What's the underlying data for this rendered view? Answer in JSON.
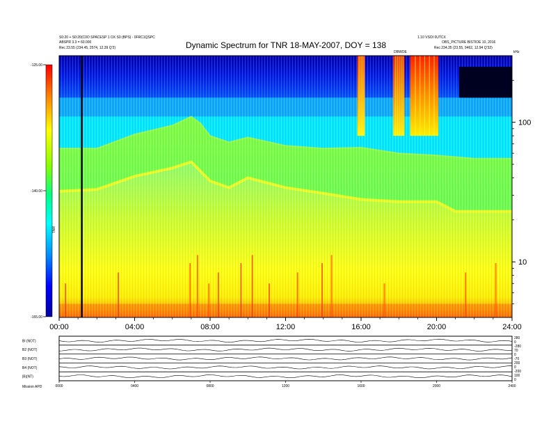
{
  "chart_data": {
    "type": "heatmap",
    "title": "Dynamic Spectrum for TNR 18-MAY-2007, DOY = 138",
    "header_left": [
      "S0:20 + S0:20(C0O SPACESP 1 OX S0 (BPS) - 0FRC1QSPC",
      "ABSPR 3.3 = 60.000",
      "Rec     23.55 (234.45, 2574, 12.39 Q'2)"
    ],
    "header_right": [
      "1.10 VSOI 0UTCX",
      "OBS_PICTURE BISTIOE 10, 2016",
      "Rec     234.35 (23.55, 9462, 12.94 Q'32)"
    ],
    "side_labels": {
      "legend": "DBWOE",
      "units": "kHz",
      "colorbar": "TNR"
    },
    "x_ticks": [
      "00:00",
      "04:00",
      "08:00",
      "12:00",
      "16:00",
      "20:00",
      "24:00"
    ],
    "x_range_hours": [
      0,
      24
    ],
    "y_scale": "log",
    "y_range_khz": [
      4,
      300
    ],
    "y_ticks": [
      "100",
      "10"
    ],
    "colorbar": {
      "range": [
        -155,
        -125
      ],
      "ticks": [
        "-125.00",
        "-140.00",
        "-155.00"
      ],
      "colors": [
        "#0000a0",
        "#0000ff",
        "#0088ff",
        "#00ffff",
        "#00ff88",
        "#88ff00",
        "#ffff00",
        "#ff8800",
        "#ff0000"
      ]
    },
    "bands": [
      {
        "range_khz": [
          150,
          300
        ],
        "level": "dark blue (about -125 to -130)"
      },
      {
        "range_khz": [
          60,
          150
        ],
        "level": "cyan (about -133)"
      },
      {
        "range_khz": [
          28,
          60
        ],
        "level": "green (about -140)"
      },
      {
        "range_khz": [
          7,
          28
        ],
        "level": "light green to yellow (about -145)"
      },
      {
        "range_khz": [
          4,
          7
        ],
        "level": "yellow to red (about -150 to -155)"
      }
    ],
    "green_band_top_khz": {
      "x_hours": [
        0,
        2,
        4,
        6,
        7,
        7.5,
        8,
        9,
        10,
        12,
        14,
        16,
        18,
        20,
        22,
        24
      ],
      "values": [
        65,
        65,
        82,
        95,
        110,
        98,
        80,
        72,
        78,
        68,
        65,
        66,
        60,
        58,
        55,
        55
      ]
    },
    "yellow_band_top_khz": {
      "x_hours": [
        0,
        2,
        4,
        6,
        7,
        8,
        9,
        10,
        12,
        14,
        16,
        18,
        20,
        21,
        24
      ],
      "values": [
        32,
        33,
        41,
        47,
        52,
        38,
        34,
        40,
        34,
        31,
        28,
        27,
        27,
        23,
        23
      ]
    },
    "red_burst_intervals_hours": [
      [
        15.8,
        16.2
      ],
      [
        17.7,
        18.3
      ],
      [
        18.6,
        20.1
      ]
    ],
    "red_burst_range_khz": [
      80,
      300
    ],
    "marker_hours": 1.2,
    "bottom_panel": {
      "channel_labels": [
        "Bl (NOT)",
        "B2 (NOT)",
        "B3 (NOT)",
        "B4 (NOT)",
        "|B|(NT)"
      ],
      "right_ticks": [
        "280",
        "0",
        "-280",
        "70",
        "0",
        "-70",
        "200",
        "0",
        "-200",
        "100",
        "0"
      ],
      "x_ticks": [
        "0000",
        "0400",
        "0800",
        "1200",
        "1600",
        "2000",
        "2400"
      ],
      "footer_label": "Mission    APD"
    }
  }
}
